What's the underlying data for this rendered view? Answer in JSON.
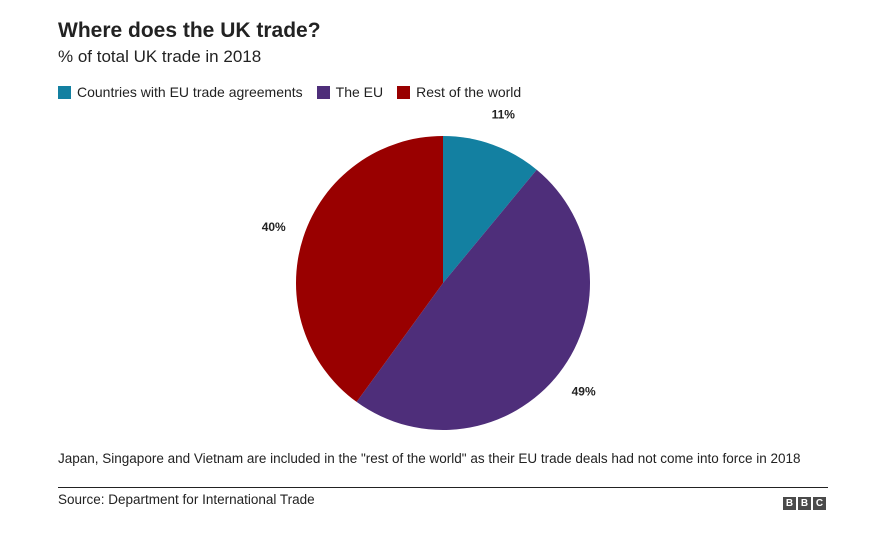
{
  "header": {
    "title": "Where does the UK trade?",
    "subtitle": "% of total UK trade in 2018"
  },
  "chart_data": {
    "type": "pie",
    "title": "Where does the UK trade?",
    "subtitle": "% of total UK trade in 2018",
    "legend_position": "top-left",
    "start_angle_deg": 0,
    "direction": "clockwise",
    "slices": [
      {
        "name": "Countries with EU trade agreements",
        "value": 11,
        "label": "11%",
        "color": "#1380A1"
      },
      {
        "name": "The EU",
        "value": 49,
        "label": "49%",
        "color": "#4E2E7A"
      },
      {
        "name": "Rest of the world",
        "value": 40,
        "label": "40%",
        "color": "#990000"
      }
    ]
  },
  "footer": {
    "note": "Japan, Singapore and Vietnam are included in the \"rest of the world\" as their EU trade deals had not come into force in 2018",
    "source": "Source: Department for International Trade",
    "logo_letters": [
      "B",
      "B",
      "C"
    ]
  }
}
